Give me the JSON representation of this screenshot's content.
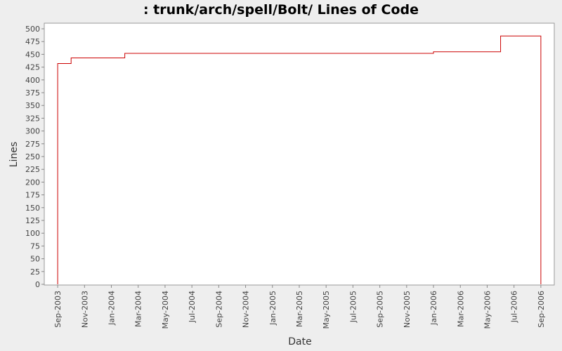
{
  "chart_data": {
    "type": "step",
    "title": ": trunk/arch/spell/Bolt/ Lines of Code",
    "xlabel": "Date",
    "ylabel": "Lines",
    "x": [
      "2003-09",
      "2003-09",
      "2003-10",
      "2004-02",
      "2006-01",
      "2006-06",
      "2006-09"
    ],
    "series": [
      {
        "name": "Lines",
        "color": "#cc0000",
        "values": [
          0,
          432,
          443,
          452,
          455,
          486,
          0
        ]
      }
    ],
    "xlim": [
      "2003-08",
      "2006-10"
    ],
    "xticks": [
      {
        "value": "2003-09",
        "label": "Sep-2003"
      },
      {
        "value": "2003-11",
        "label": "Nov-2003"
      },
      {
        "value": "2004-01",
        "label": "Jan-2004"
      },
      {
        "value": "2004-03",
        "label": "Mar-2004"
      },
      {
        "value": "2004-05",
        "label": "May-2004"
      },
      {
        "value": "2004-07",
        "label": "Jul-2004"
      },
      {
        "value": "2004-09",
        "label": "Sep-2004"
      },
      {
        "value": "2004-11",
        "label": "Nov-2004"
      },
      {
        "value": "2005-01",
        "label": "Jan-2005"
      },
      {
        "value": "2005-03",
        "label": "Mar-2005"
      },
      {
        "value": "2005-05",
        "label": "May-2005"
      },
      {
        "value": "2005-07",
        "label": "Jul-2005"
      },
      {
        "value": "2005-09",
        "label": "Sep-2005"
      },
      {
        "value": "2005-11",
        "label": "Nov-2005"
      },
      {
        "value": "2006-01",
        "label": "Jan-2006"
      },
      {
        "value": "2006-03",
        "label": "Mar-2006"
      },
      {
        "value": "2006-05",
        "label": "May-2006"
      },
      {
        "value": "2006-07",
        "label": "Jul-2006"
      },
      {
        "value": "2006-09",
        "label": "Sep-2006"
      }
    ],
    "ylim": [
      0,
      511
    ],
    "yticks": [
      0,
      25,
      50,
      75,
      100,
      125,
      150,
      175,
      200,
      225,
      250,
      275,
      300,
      325,
      350,
      375,
      400,
      425,
      450,
      475,
      500
    ],
    "grid": false
  }
}
